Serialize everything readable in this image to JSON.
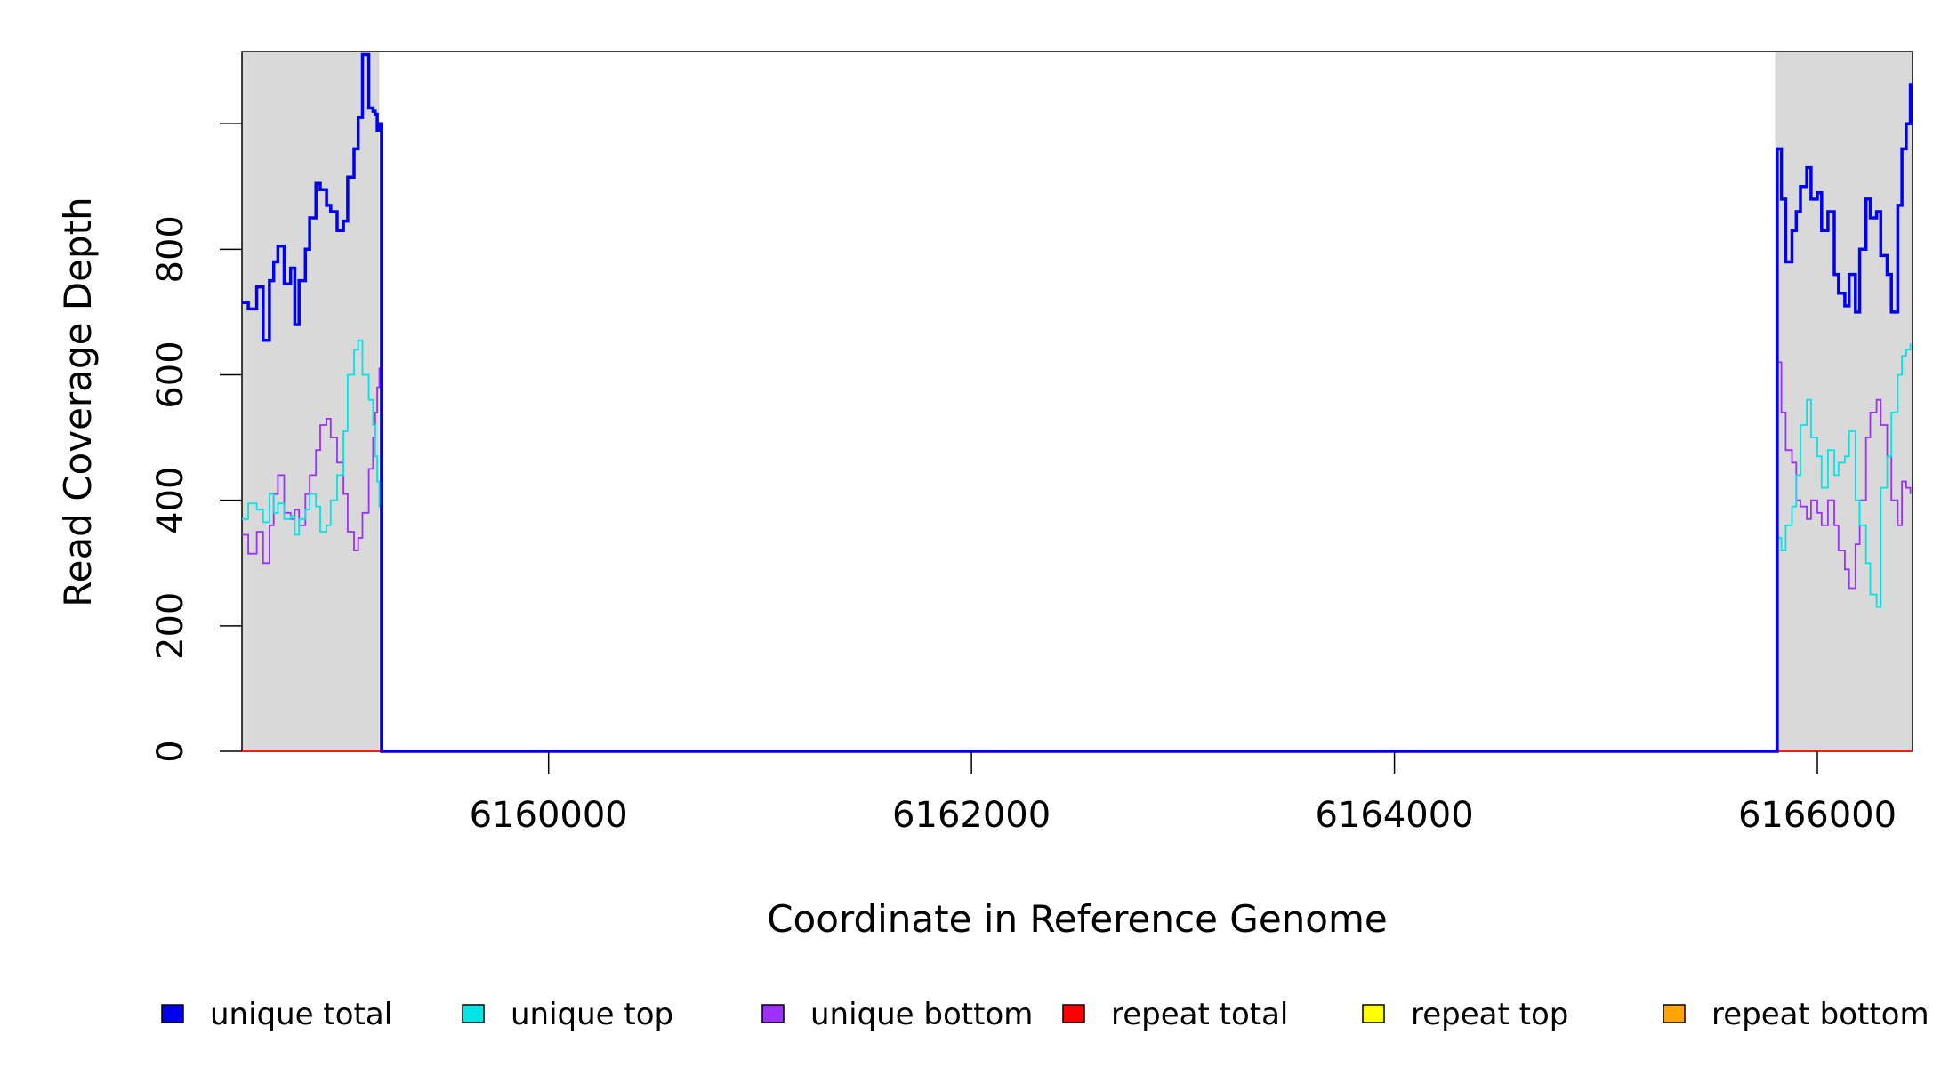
{
  "chart_data": {
    "type": "line",
    "title": "",
    "xlabel": "Coordinate in Reference Genome",
    "ylabel": "Read Coverage Depth",
    "xlim": [
      6158550,
      6166450
    ],
    "ylim": [
      0,
      1115
    ],
    "xticks": [
      6160000,
      6162000,
      6164000,
      6166000
    ],
    "xtick_labels": [
      "6160000",
      "6162000",
      "6164000",
      "6166000"
    ],
    "yticks": [
      0,
      200,
      400,
      600,
      800
    ],
    "ytick_labels": [
      "0",
      "200",
      "400",
      "600",
      "800"
    ],
    "shaded_regions": [
      {
        "x0": 6158550,
        "x1": 6159200,
        "color": "#d9d9d9"
      },
      {
        "x0": 6165800,
        "x1": 6166450,
        "color": "#d9d9d9"
      }
    ],
    "grid": false,
    "legend_position": "bottom",
    "series": [
      {
        "name": "unique total",
        "color": "#0000ee",
        "x": [
          6158550,
          6158580,
          6158620,
          6158650,
          6158680,
          6158700,
          6158720,
          6158750,
          6158780,
          6158800,
          6158820,
          6158850,
          6158870,
          6158900,
          6158920,
          6158950,
          6158970,
          6159000,
          6159030,
          6159050,
          6159080,
          6159100,
          6159120,
          6159150,
          6159170,
          6159180,
          6159190,
          6159200,
          6159210,
          6165800,
          6165810,
          6165830,
          6165850,
          6165880,
          6165900,
          6165920,
          6165950,
          6165970,
          6166000,
          6166020,
          6166050,
          6166080,
          6166100,
          6166130,
          6166150,
          6166180,
          6166200,
          6166230,
          6166250,
          6166280,
          6166300,
          6166330,
          6166350,
          6166380,
          6166400,
          6166420,
          6166440
        ],
        "y": [
          715,
          705,
          740,
          655,
          750,
          780,
          805,
          745,
          770,
          680,
          750,
          800,
          850,
          905,
          895,
          870,
          860,
          830,
          845,
          915,
          960,
          1010,
          1110,
          1025,
          1020,
          1015,
          990,
          1000,
          0,
          0,
          960,
          880,
          780,
          830,
          860,
          900,
          930,
          880,
          890,
          830,
          860,
          760,
          730,
          710,
          760,
          700,
          800,
          880,
          850,
          860,
          790,
          760,
          700,
          870,
          960,
          1000,
          1065
        ]
      },
      {
        "name": "unique top",
        "color": "#00e5e5",
        "x": [
          6158550,
          6158580,
          6158620,
          6158650,
          6158680,
          6158700,
          6158720,
          6158750,
          6158780,
          6158800,
          6158820,
          6158850,
          6158870,
          6158900,
          6158920,
          6158950,
          6158970,
          6159000,
          6159030,
          6159050,
          6159080,
          6159100,
          6159120,
          6159150,
          6159170,
          6159180,
          6159190,
          6159200,
          6159210,
          6165800,
          6165810,
          6165830,
          6165850,
          6165880,
          6165900,
          6165920,
          6165950,
          6165970,
          6166000,
          6166020,
          6166050,
          6166080,
          6166100,
          6166130,
          6166150,
          6166180,
          6166200,
          6166230,
          6166250,
          6166280,
          6166300,
          6166330,
          6166350,
          6166380,
          6166400,
          6166420,
          6166440
        ],
        "y": [
          370,
          395,
          385,
          365,
          410,
          380,
          395,
          370,
          375,
          345,
          370,
          385,
          410,
          390,
          350,
          360,
          400,
          440,
          510,
          600,
          640,
          655,
          600,
          560,
          520,
          470,
          430,
          390,
          0,
          0,
          340,
          320,
          360,
          390,
          440,
          520,
          560,
          500,
          470,
          420,
          480,
          440,
          460,
          470,
          510,
          400,
          360,
          300,
          250,
          230,
          420,
          470,
          540,
          600,
          630,
          640,
          650
        ]
      },
      {
        "name": "unique bottom",
        "color": "#9b30ff",
        "x": [
          6158550,
          6158580,
          6158620,
          6158650,
          6158680,
          6158700,
          6158720,
          6158750,
          6158780,
          6158800,
          6158820,
          6158850,
          6158870,
          6158900,
          6158920,
          6158950,
          6158970,
          6159000,
          6159030,
          6159050,
          6159080,
          6159100,
          6159120,
          6159150,
          6159170,
          6159180,
          6159190,
          6159200,
          6159210,
          6165800,
          6165810,
          6165830,
          6165850,
          6165880,
          6165900,
          6165920,
          6165950,
          6165970,
          6166000,
          6166020,
          6166050,
          6166080,
          6166100,
          6166130,
          6166150,
          6166180,
          6166200,
          6166230,
          6166250,
          6166280,
          6166300,
          6166330,
          6166350,
          6166380,
          6166400,
          6166420,
          6166440
        ],
        "y": [
          345,
          315,
          350,
          300,
          360,
          410,
          440,
          380,
          370,
          385,
          360,
          410,
          440,
          480,
          520,
          530,
          500,
          460,
          410,
          350,
          320,
          340,
          380,
          450,
          500,
          540,
          580,
          610,
          0,
          0,
          620,
          540,
          480,
          460,
          400,
          390,
          370,
          400,
          380,
          360,
          400,
          360,
          320,
          290,
          260,
          330,
          400,
          500,
          540,
          560,
          520,
          470,
          400,
          360,
          430,
          420,
          410
        ]
      },
      {
        "name": "repeat total",
        "color": "#ff0000",
        "x": [
          6158550,
          6166450
        ],
        "y": [
          0,
          0
        ]
      },
      {
        "name": "repeat top",
        "color": "#ffff00",
        "x": [
          6158550,
          6166450
        ],
        "y": [
          0,
          0
        ]
      },
      {
        "name": "repeat bottom",
        "color": "#ffa500",
        "x": [
          6158550,
          6166450
        ],
        "y": [
          0,
          0
        ]
      }
    ]
  }
}
